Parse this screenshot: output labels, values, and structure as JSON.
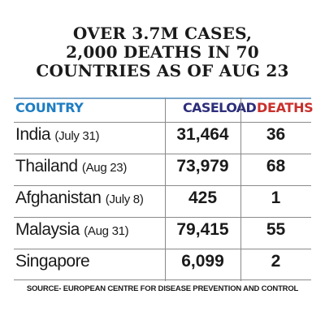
{
  "chart_data": {
    "type": "table",
    "title": [
      "OVER 3.7M CASES,",
      "2,000 DEATHS IN 70",
      "COUNTRIES AS OF AUG 23"
    ],
    "columns": [
      "COUNTRY",
      "CASELOAD",
      "DEATHS"
    ],
    "rows": [
      {
        "country": "India",
        "date": "(July 31)",
        "caseload": "31,464",
        "deaths": "36"
      },
      {
        "country": "Thailand",
        "date": "(Aug 23)",
        "caseload": "73,979",
        "deaths": "68"
      },
      {
        "country": "Afghanistan",
        "date": "(July 8)",
        "caseload": "425",
        "deaths": "1"
      },
      {
        "country": "Malaysia",
        "date": "(Aug 31)",
        "caseload": "79,415",
        "deaths": "55"
      },
      {
        "country": "Singapore",
        "date": "",
        "caseload": "6,099",
        "deaths": "2"
      }
    ],
    "source": "SOURCE- EUROPEAN CENTRE FOR DISEASE PREVENTION AND CONTROL"
  },
  "colors": {
    "country_header": "#1e7dc2",
    "caseload_header": "#2d2e7a",
    "deaths_header": "#c9302c",
    "header_rule": "#7aa6cc"
  }
}
